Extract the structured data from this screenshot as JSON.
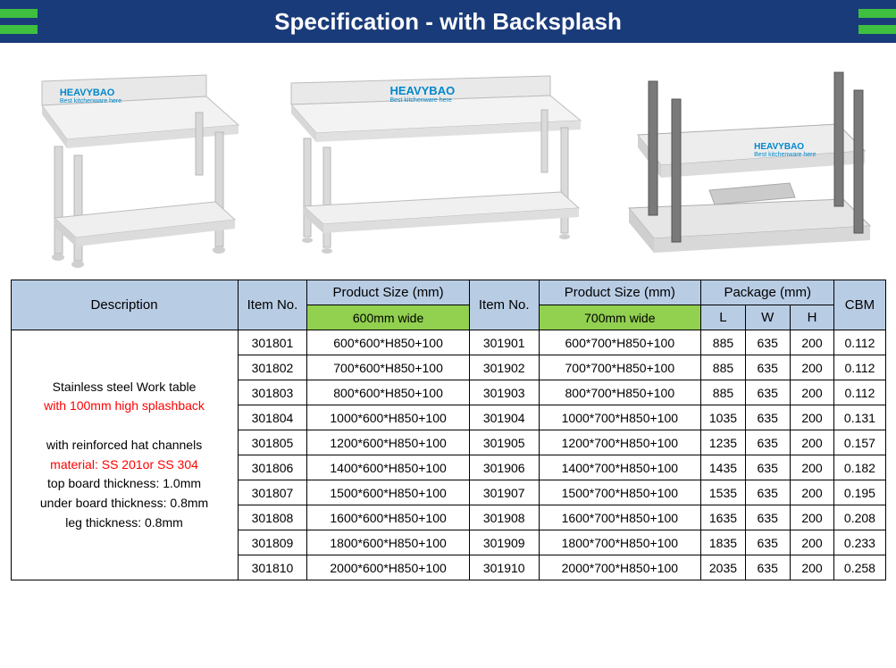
{
  "header": {
    "title": "Specification - with Backsplash",
    "bg_color": "#1a3b7a",
    "text_color": "#ffffff",
    "accent_color": "#3fbf3f"
  },
  "brand": {
    "name": "HEAVYBAO",
    "tagline": "Best kitchenware here",
    "color": "#0088cc"
  },
  "table": {
    "header_bg": "#b8cce4",
    "subhead_bg": "#92d050",
    "border_color": "#000000",
    "columns": {
      "description": "Description",
      "item_no": "Item No.",
      "product_size": "Product Size (mm)",
      "package": "Package (mm)",
      "cbm": "CBM",
      "sub_600": "600mm wide",
      "sub_700": "700mm wide",
      "pkg_l": "L",
      "pkg_w": "W",
      "pkg_h": "H"
    },
    "description": {
      "line1": "Stainless steel Work table",
      "line2": "with 100mm high splashback",
      "line3": "",
      "line4": "with reinforced hat channels",
      "line5": "material: SS 201or SS 304",
      "line6": "top board thickness: 1.0mm",
      "line7": "under board thickness: 0.8mm",
      "line8": "leg thickness: 0.8mm"
    },
    "rows": [
      {
        "item1": "301801",
        "size1": "600*600*H850+100",
        "item2": "301901",
        "size2": "600*700*H850+100",
        "l": "885",
        "w": "635",
        "h": "200",
        "cbm": "0.112"
      },
      {
        "item1": "301802",
        "size1": "700*600*H850+100",
        "item2": "301902",
        "size2": "700*700*H850+100",
        "l": "885",
        "w": "635",
        "h": "200",
        "cbm": "0.112"
      },
      {
        "item1": "301803",
        "size1": "800*600*H850+100",
        "item2": "301903",
        "size2": "800*700*H850+100",
        "l": "885",
        "w": "635",
        "h": "200",
        "cbm": "0.112"
      },
      {
        "item1": "301804",
        "size1": "1000*600*H850+100",
        "item2": "301904",
        "size2": "1000*700*H850+100",
        "l": "1035",
        "w": "635",
        "h": "200",
        "cbm": "0.131"
      },
      {
        "item1": "301805",
        "size1": "1200*600*H850+100",
        "item2": "301905",
        "size2": "1200*700*H850+100",
        "l": "1235",
        "w": "635",
        "h": "200",
        "cbm": "0.157"
      },
      {
        "item1": "301806",
        "size1": "1400*600*H850+100",
        "item2": "301906",
        "size2": "1400*700*H850+100",
        "l": "1435",
        "w": "635",
        "h": "200",
        "cbm": "0.182"
      },
      {
        "item1": "301807",
        "size1": "1500*600*H850+100",
        "item2": "301907",
        "size2": "1500*700*H850+100",
        "l": "1535",
        "w": "635",
        "h": "200",
        "cbm": "0.195"
      },
      {
        "item1": "301808",
        "size1": "1600*600*H850+100",
        "item2": "301908",
        "size2": "1600*700*H850+100",
        "l": "1635",
        "w": "635",
        "h": "200",
        "cbm": "0.208"
      },
      {
        "item1": "301809",
        "size1": "1800*600*H850+100",
        "item2": "301909",
        "size2": "1800*700*H850+100",
        "l": "1835",
        "w": "635",
        "h": "200",
        "cbm": "0.233"
      },
      {
        "item1": "301810",
        "size1": "2000*600*H850+100",
        "item2": "301910",
        "size2": "2000*700*H850+100",
        "l": "2035",
        "w": "635",
        "h": "200",
        "cbm": "0.258"
      }
    ]
  }
}
